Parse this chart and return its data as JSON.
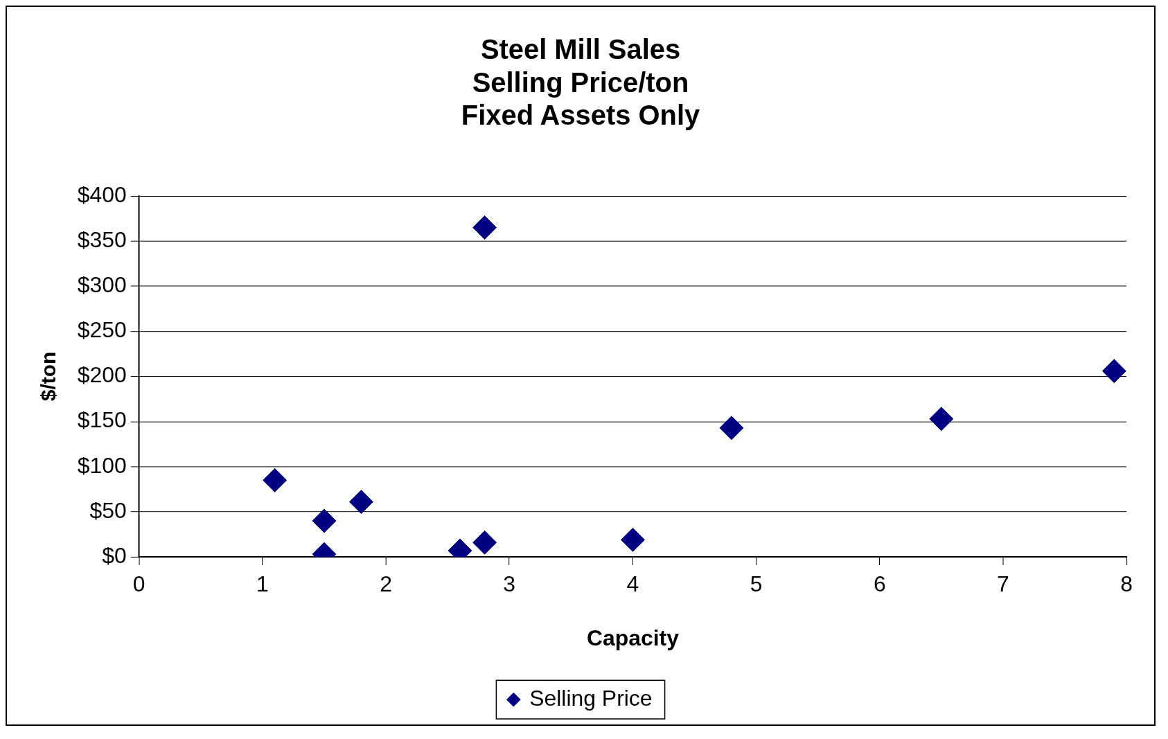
{
  "chart_data": {
    "type": "scatter",
    "title": [
      "Steel Mill Sales",
      "Selling Price/ton",
      "Fixed Assets Only"
    ],
    "xlabel": "Capacity",
    "ylabel": "$/ton",
    "series": [
      {
        "name": "Selling Price",
        "color": "#000080",
        "x": [
          1.1,
          1.5,
          1.5,
          1.8,
          2.6,
          2.8,
          2.8,
          4.0,
          4.8,
          6.5,
          7.9
        ],
        "values": [
          85,
          40,
          3,
          61,
          7,
          16,
          365,
          19,
          143,
          153,
          206
        ]
      }
    ],
    "xlim": [
      0,
      8
    ],
    "xticks": [
      0,
      1,
      2,
      3,
      4,
      5,
      6,
      7,
      8
    ],
    "ylim": [
      0,
      400
    ],
    "yticks": [
      {
        "value": 0,
        "label": "$0"
      },
      {
        "value": 50,
        "label": "$50"
      },
      {
        "value": 100,
        "label": "$100"
      },
      {
        "value": 150,
        "label": "$150"
      },
      {
        "value": 200,
        "label": "$200"
      },
      {
        "value": 250,
        "label": "$250"
      },
      {
        "value": 300,
        "label": "$300"
      },
      {
        "value": 350,
        "label": "$350"
      },
      {
        "value": 400,
        "label": "$400"
      }
    ],
    "grid": "y",
    "legend": "bottom",
    "marker": "diamond"
  }
}
